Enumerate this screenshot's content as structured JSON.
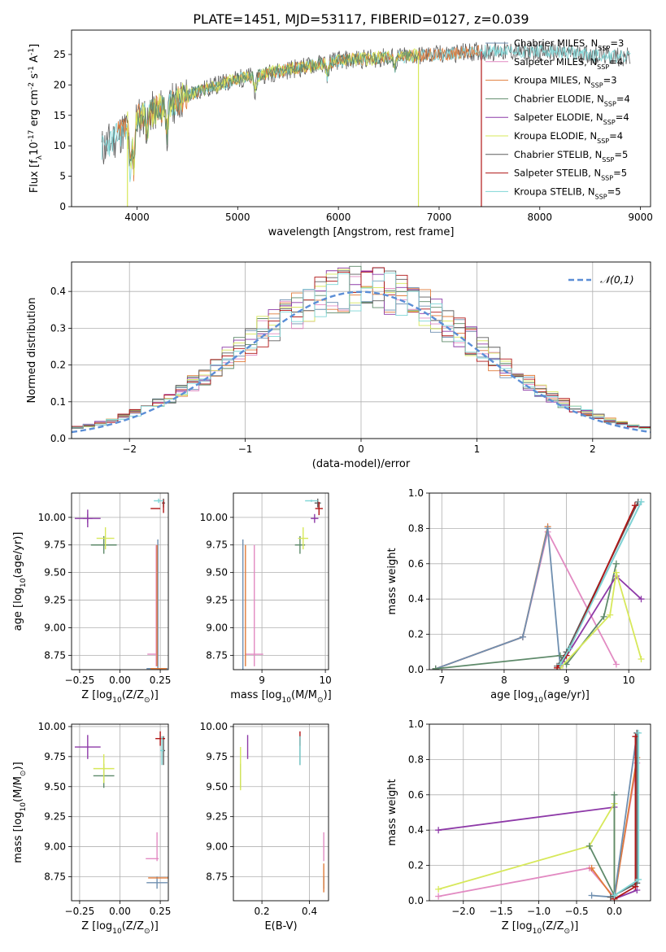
{
  "figure_title": "PLATE=1451, MJD=53117, FIBERID=0127, z=0.039",
  "legend_labels": [
    "Chabrier MILES, N$_{SSP}$=3",
    "Salpeter MILES, N$_{SSP}$=4",
    "Kroupa MILES, N$_{SSP}$=3",
    "Chabrier ELODIE, N$_{SSP}$=4",
    "Salpeter ELODIE, N$_{SSP}$=4",
    "Kroupa ELODIE, N$_{SSP}$=4",
    "Chabrier STELIB, N$_{SSP}$=5",
    "Salpeter STELIB, N$_{SSP}$=5",
    "Kroupa STELIB, N$_{SSP}$=5"
  ],
  "colors": [
    "#6f8fb0",
    "#e28ac2",
    "#e07b3a",
    "#5e8a6a",
    "#8e3aa8",
    "#d7e85a",
    "#5f5f5f",
    "#b01515",
    "#7fd6d6"
  ],
  "chart_data": [
    {
      "id": "spectrum",
      "type": "line",
      "title": "PLATE=1451, MJD=53117, FIBERID=0127, z=0.039",
      "xlabel": "wavelength [Angstrom, rest frame]",
      "ylabel": "Flux [f$_\\lambda$10$^{-17}$ erg cm$^{-2}$ s$^{-1}$ A$^{-1}$]",
      "xlim": [
        3350,
        9100
      ],
      "ylim": [
        0,
        29
      ],
      "xticks": [
        4000,
        5000,
        6000,
        7000,
        8000,
        9000
      ],
      "yticks": [
        0,
        5,
        10,
        15,
        20,
        25
      ],
      "grid": false,
      "legend": "top-right",
      "continuum": {
        "x": [
          3650,
          3800,
          4000,
          4300,
          4600,
          5000,
          5500,
          6000,
          6500,
          7000,
          7400,
          8000,
          8500,
          8900
        ],
        "y": [
          9.5,
          11.5,
          14.5,
          16.5,
          19,
          21,
          22.5,
          24,
          24.5,
          25,
          25.5,
          25.5,
          25,
          24.5
        ]
      },
      "features": [
        {
          "x": 3933,
          "y": 5.5
        },
        {
          "x": 3968,
          "y": 6.5
        },
        {
          "x": 4102,
          "y": 12.5
        },
        {
          "x": 4300,
          "y": 12.0
        },
        {
          "x": 5175,
          "y": 18.5
        },
        {
          "x": 5890,
          "y": 21.5
        },
        {
          "x": 6563,
          "y": 23
        }
      ],
      "dropouts": [
        {
          "x": 3905,
          "y": 0
        },
        {
          "x": 6795,
          "y": 0
        },
        {
          "x": 7420,
          "y": 0
        }
      ],
      "extent_stelib": [
        3650,
        8900
      ],
      "extent_miles": [
        3800,
        7400
      ],
      "extent_elodie": [
        3900,
        6800
      ]
    },
    {
      "id": "residuals",
      "type": "line",
      "xlabel": "(data-model)/error",
      "ylabel": "Normed distribution",
      "xlim": [
        -2.5,
        2.5
      ],
      "ylim": [
        0,
        0.48
      ],
      "xticks": [
        -2,
        -1,
        0,
        1,
        2
      ],
      "yticks": [
        0.0,
        0.1,
        0.2,
        0.3,
        0.4
      ],
      "grid": true,
      "legend": "top-right",
      "gaussian_label": "$\\mathcal{N}(0,1)$",
      "gaussian_color": "#5b8ed6",
      "bin_width": 0.1
    },
    {
      "id": "age-vs-Z",
      "type": "scatter",
      "xlabel": "Z [log$_{10}$(Z/Z$_\\odot$)]",
      "ylabel": "age  [log$_{10}$(age/yr)]",
      "xlim": [
        -0.3,
        0.3
      ],
      "ylim": [
        8.62,
        10.22
      ],
      "xticks": [
        -0.25,
        0.0,
        0.25
      ],
      "xticklabels": [
        "−0.25",
        "0.00",
        "0.25"
      ],
      "yticks": [
        8.75,
        9.0,
        9.25,
        9.5,
        9.75,
        10.0
      ],
      "grid": true,
      "points": [
        {
          "c": 0,
          "x": 0.23,
          "y": 8.63,
          "ex": 0.065,
          "ey": 0
        },
        {
          "c": 0,
          "x": 0.235,
          "y": 9.18,
          "ex": 0,
          "ey": 0.62
        },
        {
          "c": 1,
          "x": 0.2,
          "y": 8.76,
          "ex": 0.03,
          "ey": 0.0
        },
        {
          "c": 1,
          "x": 0.225,
          "y": 9.2,
          "ex": 0,
          "ey": 0.55
        },
        {
          "c": 2,
          "x": 0.24,
          "y": 8.63,
          "ex": 0.05,
          "ey": 0
        },
        {
          "c": 2,
          "x": 0.23,
          "y": 9.2,
          "ex": 0,
          "ey": 0.55
        },
        {
          "c": 3,
          "x": -0.1,
          "y": 9.75,
          "ex": 0.08,
          "ey": 0.08
        },
        {
          "c": 4,
          "x": -0.2,
          "y": 9.99,
          "ex": 0.08,
          "ey": 0.04
        },
        {
          "c": 4,
          "x": -0.2,
          "y": 9.99,
          "ex": 0.03,
          "ey": 0.08
        },
        {
          "c": 5,
          "x": -0.09,
          "y": 9.81,
          "ex": 0.055,
          "ey": 0.1
        },
        {
          "c": 6,
          "x": 0.27,
          "y": 10.13,
          "ex": 0.01,
          "ey": 0.04
        },
        {
          "c": 7,
          "x": 0.22,
          "y": 10.08,
          "ex": 0.03,
          "ey": 0.0
        },
        {
          "c": 7,
          "x": 0.27,
          "y": 10.1,
          "ex": 0,
          "ey": 0.06
        },
        {
          "c": 8,
          "x": 0.24,
          "y": 10.15,
          "ex": 0.03,
          "ey": 0.02
        }
      ]
    },
    {
      "id": "age-vs-mass",
      "type": "scatter",
      "xlabel": "mass [log$_{10}$(M/M$_\\odot$)]",
      "ylabel": "",
      "xlim": [
        8.55,
        10.05
      ],
      "ylim": [
        8.62,
        10.22
      ],
      "xticks": [
        9,
        10
      ],
      "yticks": [
        8.75,
        9.0,
        9.25,
        9.5,
        9.75,
        10.0
      ],
      "grid": true,
      "points": [
        {
          "c": 0,
          "x": 8.7,
          "y": 9.2,
          "ex": 0,
          "ey": 0.6
        },
        {
          "c": 1,
          "x": 8.88,
          "y": 8.76,
          "ex": 0.14,
          "ey": 0
        },
        {
          "c": 1,
          "x": 8.88,
          "y": 9.2,
          "ex": 0,
          "ey": 0.55
        },
        {
          "c": 2,
          "x": 8.74,
          "y": 9.2,
          "ex": 0,
          "ey": 0.55
        },
        {
          "c": 3,
          "x": 9.6,
          "y": 9.75,
          "ex": 0.08,
          "ey": 0.08
        },
        {
          "c": 4,
          "x": 9.83,
          "y": 9.99,
          "ex": 0.06,
          "ey": 0.04
        },
        {
          "c": 5,
          "x": 9.65,
          "y": 9.81,
          "ex": 0.08,
          "ey": 0.1
        },
        {
          "c": 6,
          "x": 9.88,
          "y": 10.13,
          "ex": 0.05,
          "ey": 0.04
        },
        {
          "c": 7,
          "x": 9.9,
          "y": 10.08,
          "ex": 0.06,
          "ey": 0.06
        },
        {
          "c": 8,
          "x": 9.78,
          "y": 10.15,
          "ex": 0.1,
          "ey": 0.01
        }
      ]
    },
    {
      "id": "weight-vs-age",
      "type": "line",
      "xlabel": "age  [log$_{10}$(age/yr)]",
      "ylabel": "mass weight",
      "xlim": [
        6.8,
        10.35
      ],
      "ylim": [
        0,
        1
      ],
      "xticks": [
        7,
        8,
        9,
        10
      ],
      "yticks": [
        0.0,
        0.2,
        0.4,
        0.6,
        0.8,
        1.0
      ],
      "grid": true,
      "series": [
        {
          "c": 1,
          "x": [
            6.9,
            8.3,
            8.7,
            9.8
          ],
          "y": [
            0.005,
            0.185,
            0.78,
            0.03
          ]
        },
        {
          "c": 2,
          "x": [
            6.9,
            8.3,
            8.7
          ],
          "y": [
            0.005,
            0.185,
            0.81
          ]
        },
        {
          "c": 0,
          "x": [
            6.9,
            8.3,
            8.7,
            8.9,
            10.2
          ],
          "y": [
            0.005,
            0.185,
            0.8,
            0.02,
            0.95
          ]
        },
        {
          "c": 3,
          "x": [
            6.9,
            8.9,
            9.0,
            9.6,
            9.8
          ],
          "y": [
            0.005,
            0.08,
            0.03,
            0.3,
            0.6
          ]
        },
        {
          "c": 4,
          "x": [
            8.9,
            9.8,
            10.2
          ],
          "y": [
            0.02,
            0.53,
            0.4
          ]
        },
        {
          "c": 5,
          "x": [
            8.9,
            9.7,
            9.8,
            10.2
          ],
          "y": [
            0.01,
            0.31,
            0.55,
            0.06
          ]
        },
        {
          "c": 6,
          "x": [
            8.85,
            9.0,
            10.15
          ],
          "y": [
            0.02,
            0.1,
            0.95
          ]
        },
        {
          "c": 7,
          "x": [
            8.85,
            9.0,
            10.1
          ],
          "y": [
            0.01,
            0.08,
            0.93
          ]
        },
        {
          "c": 8,
          "x": [
            8.9,
            9.05,
            10.2
          ],
          "y": [
            0.03,
            0.12,
            0.95
          ]
        }
      ]
    },
    {
      "id": "mass-vs-Z",
      "type": "scatter",
      "xlabel": "Z [log$_{10}$(Z/Z$_\\odot$)]",
      "ylabel": "mass [log$_{10}$(M/M$_\\odot$)]",
      "xlim": [
        -0.3,
        0.3
      ],
      "ylim": [
        8.55,
        10.02
      ],
      "xticks": [
        -0.25,
        0.0,
        0.25
      ],
      "xticklabels": [
        "−0.25",
        "0.00",
        "0.25"
      ],
      "yticks": [
        8.75,
        9.0,
        9.25,
        9.5,
        9.75,
        10.0
      ],
      "grid": true,
      "points": [
        {
          "c": 0,
          "x": 0.23,
          "y": 8.7,
          "ex": 0.065,
          "ey": 0.05
        },
        {
          "c": 1,
          "x": 0.2,
          "y": 8.9,
          "ex": 0.04,
          "ey": 0.0
        },
        {
          "c": 1,
          "x": 0.23,
          "y": 9.0,
          "ex": 0,
          "ey": 0.12
        },
        {
          "c": 2,
          "x": 0.24,
          "y": 8.74,
          "ex": 0.065,
          "ey": 0.0
        },
        {
          "c": 3,
          "x": -0.1,
          "y": 9.59,
          "ex": 0.065,
          "ey": 0.1
        },
        {
          "c": 4,
          "x": -0.2,
          "y": 9.83,
          "ex": 0.08,
          "ey": 0.1
        },
        {
          "c": 5,
          "x": -0.1,
          "y": 9.65,
          "ex": 0.065,
          "ey": 0.12
        },
        {
          "c": 6,
          "x": 0.27,
          "y": 9.8,
          "ex": 0.01,
          "ey": 0.12
        },
        {
          "c": 7,
          "x": 0.25,
          "y": 9.9,
          "ex": 0.03,
          "ey": 0.06
        },
        {
          "c": 8,
          "x": 0.26,
          "y": 9.8,
          "ex": 0.01,
          "ey": 0.12
        }
      ]
    },
    {
      "id": "mass-vs-EBV",
      "type": "scatter",
      "xlabel": "E(B-V)",
      "ylabel": "",
      "xlim": [
        0.08,
        0.48
      ],
      "ylim": [
        8.55,
        10.02
      ],
      "xticks": [
        0.2,
        0.4
      ],
      "yticks": [
        8.75,
        9.0,
        9.25,
        9.5,
        9.75,
        10.0
      ],
      "grid": true,
      "points": [
        {
          "c": 0,
          "x": 0.46,
          "y": 8.7,
          "ex": 0,
          "ey": 0.05
        },
        {
          "c": 1,
          "x": 0.46,
          "y": 9.0,
          "ex": 0,
          "ey": 0.12
        },
        {
          "c": 2,
          "x": 0.46,
          "y": 8.74,
          "ex": 0,
          "ey": 0.12
        },
        {
          "c": 3,
          "x": 0.11,
          "y": 9.59,
          "ex": 0,
          "ey": 0.1
        },
        {
          "c": 4,
          "x": 0.14,
          "y": 9.83,
          "ex": 0,
          "ey": 0.1
        },
        {
          "c": 5,
          "x": 0.11,
          "y": 9.65,
          "ex": 0,
          "ey": 0.18
        },
        {
          "c": 6,
          "x": 0.36,
          "y": 9.8,
          "ex": 0,
          "ey": 0.12
        },
        {
          "c": 7,
          "x": 0.36,
          "y": 9.9,
          "ex": 0,
          "ey": 0.06
        },
        {
          "c": 8,
          "x": 0.36,
          "y": 9.8,
          "ex": 0,
          "ey": 0.12
        }
      ]
    },
    {
      "id": "weight-vs-Z",
      "type": "line",
      "xlabel": "Z [log$_{10}$(Z/Z$_\\odot$)]",
      "ylabel": "mass weight",
      "xlim": [
        -2.45,
        0.48
      ],
      "ylim": [
        0,
        1
      ],
      "xticks": [
        -2.0,
        -1.5,
        -1.0,
        -0.5,
        0.0
      ],
      "xticklabels": [
        "−2.0",
        "−1.5",
        "−1.0",
        "−0.5",
        "0.0"
      ],
      "yticks": [
        0.0,
        0.2,
        0.4,
        0.6,
        0.8,
        1.0
      ],
      "grid": true,
      "series": [
        {
          "c": 4,
          "x": [
            -2.33,
            0.0,
            0.0,
            0.3
          ],
          "y": [
            0.4,
            0.53,
            0.01,
            0.06
          ]
        },
        {
          "c": 5,
          "x": [
            -2.33,
            -0.33,
            0.0,
            0.0
          ],
          "y": [
            0.065,
            0.31,
            0.55,
            0.01
          ]
        },
        {
          "c": 1,
          "x": [
            -2.33,
            -0.33,
            0.0,
            0.3
          ],
          "y": [
            0.025,
            0.185,
            0.02,
            0.78
          ]
        },
        {
          "c": 2,
          "x": [
            -0.3,
            0.0,
            0.3
          ],
          "y": [
            0.185,
            0.01,
            0.81
          ]
        },
        {
          "c": 3,
          "x": [
            -0.33,
            0.0,
            0.0
          ],
          "y": [
            0.31,
            0.03,
            0.6
          ]
        },
        {
          "c": 0,
          "x": [
            -0.3,
            0.0,
            0.3
          ],
          "y": [
            0.03,
            0.02,
            0.95
          ]
        },
        {
          "c": 6,
          "x": [
            -0.05,
            0.3,
            0.3
          ],
          "y": [
            0.02,
            0.1,
            0.95
          ]
        },
        {
          "c": 7,
          "x": [
            0.0,
            0.28,
            0.28
          ],
          "y": [
            0.01,
            0.08,
            0.93
          ]
        },
        {
          "c": 8,
          "x": [
            0.0,
            0.32,
            0.32
          ],
          "y": [
            0.03,
            0.12,
            0.95
          ]
        }
      ]
    }
  ]
}
